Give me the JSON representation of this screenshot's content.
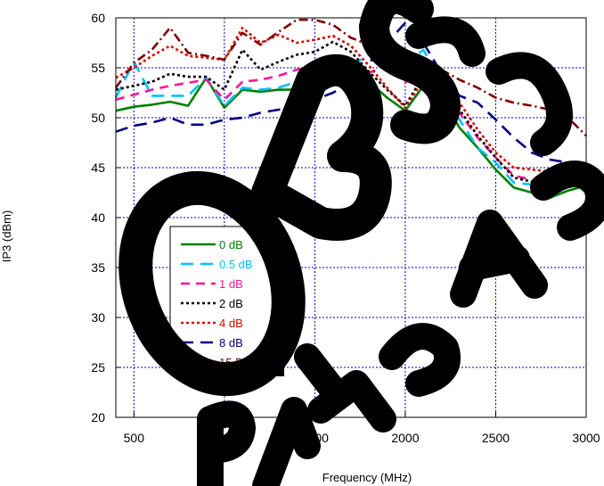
{
  "chart_data": {
    "type": "line",
    "xlabel": "Frequency (MHz)",
    "ylabel": "IP3 (dBm)",
    "xlim": [
      400,
      3000
    ],
    "ylim": [
      20,
      60
    ],
    "x_ticks": [
      500,
      1000,
      1500,
      2000,
      2500,
      3000
    ],
    "y_ticks": [
      20,
      25,
      30,
      35,
      40,
      45,
      50,
      55,
      60
    ],
    "grid": true,
    "legend_position": "left-center",
    "watermark_text": "OBSOLETE REPLACED",
    "series": [
      {
        "name": "0 dB",
        "color": "#008000",
        "dash": "solid",
        "x": [
          400,
          500,
          600,
          700,
          800,
          900,
          1000,
          1100,
          1200,
          1300,
          1400,
          1500,
          1600,
          1700,
          1800,
          1900,
          2000,
          2100,
          2200,
          2300,
          2400,
          2500,
          2600,
          2700,
          2800,
          2900,
          3000
        ],
        "values": [
          50.7,
          51.1,
          51.3,
          51.6,
          51.2,
          54.0,
          51.0,
          52.8,
          52.6,
          52.8,
          52.8,
          53.5,
          55.0,
          54.7,
          53.6,
          52.0,
          50.7,
          53.2,
          52.0,
          49.0,
          47.0,
          44.8,
          43.0,
          42.5,
          42.0,
          42.7,
          43.2
        ]
      },
      {
        "name": "0.5 dB",
        "color": "#00C0FF",
        "dash": "longdash",
        "x": [
          400,
          500,
          600,
          700,
          800,
          900,
          1000,
          1100,
          1200,
          1300,
          1400,
          1500,
          1600,
          1700,
          1800,
          1900,
          2000,
          2100,
          2200,
          2300,
          2400,
          2500,
          2600,
          2700,
          2800,
          2900,
          3000
        ],
        "values": [
          52.0,
          55.6,
          52.2,
          52.2,
          52.2,
          54.0,
          51.2,
          53.0,
          52.8,
          53.0,
          53.6,
          54.2,
          55.2,
          55.0,
          56.5,
          58.0,
          55.2,
          56.8,
          53.5,
          49.8,
          47.0,
          45.5,
          43.5,
          43.3,
          43.2,
          43.5,
          44.0
        ]
      },
      {
        "name": "1 dB",
        "color": "#FF1493",
        "dash": "dash",
        "x": [
          400,
          500,
          600,
          700,
          800,
          900,
          1000,
          1100,
          1200,
          1300,
          1400,
          1500,
          1600,
          1700,
          1800,
          1900,
          2000,
          2100,
          2200,
          2300,
          2400,
          2500,
          2600,
          2700,
          2800,
          2900,
          3000
        ],
        "values": [
          51.8,
          52.3,
          52.8,
          53.2,
          53.5,
          53.8,
          51.8,
          53.6,
          53.8,
          54.2,
          54.8,
          55.2,
          55.4,
          55.0,
          54.5,
          55.2,
          53.5,
          55.8,
          52.5,
          50.5,
          48.0,
          46.0,
          44.2,
          43.8,
          43.5,
          43.8,
          44.0
        ]
      },
      {
        "name": "2 dB",
        "color": "#000000",
        "dash": "dot",
        "x": [
          400,
          500,
          600,
          700,
          800,
          900,
          1000,
          1100,
          1200,
          1300,
          1400,
          1500,
          1600,
          1700,
          1800,
          1900,
          2000,
          2100,
          2200,
          2300,
          2400,
          2500,
          2600,
          2700,
          2800,
          2900,
          3000
        ],
        "values": [
          52.8,
          53.2,
          53.6,
          54.4,
          54.1,
          54.1,
          52.8,
          56.8,
          54.8,
          55.6,
          56.3,
          56.6,
          57.6,
          56.6,
          54.6,
          52.8,
          51.2,
          54.2,
          52.3,
          50.8,
          48.2,
          46.0,
          44.0,
          43.6,
          43.3,
          43.4,
          44.0
        ]
      },
      {
        "name": "4 dB",
        "color": "#DD0000",
        "dash": "dot",
        "x": [
          400,
          500,
          600,
          700,
          800,
          900,
          1000,
          1100,
          1200,
          1300,
          1400,
          1500,
          1600,
          1700,
          1800,
          1900,
          2000,
          2100,
          2200,
          2300,
          2400,
          2500,
          2600,
          2700,
          2800,
          2900,
          3000
        ],
        "values": [
          54.0,
          55.0,
          56.2,
          57.2,
          56.2,
          56.0,
          55.8,
          59.0,
          57.5,
          58.3,
          57.5,
          57.8,
          58.2,
          57.2,
          55.2,
          53.0,
          51.0,
          53.8,
          52.5,
          51.5,
          48.8,
          46.5,
          45.0,
          44.8,
          44.6,
          44.7,
          44.8
        ]
      },
      {
        "name": "8 dB",
        "color": "#000080",
        "dash": "longdash",
        "x": [
          400,
          500,
          600,
          700,
          800,
          900,
          1000,
          1100,
          1200,
          1300,
          1400,
          1500,
          1600,
          1700,
          1800,
          1900,
          2000,
          2100,
          2200,
          2300,
          2400,
          2500,
          2600,
          2700,
          2800,
          2900,
          3000
        ],
        "values": [
          48.6,
          49.2,
          49.5,
          50.0,
          49.3,
          49.3,
          49.8,
          50.0,
          50.5,
          50.8,
          51.3,
          51.8,
          52.5,
          53.5,
          55.5,
          57.5,
          59.5,
          57.5,
          54.5,
          52.2,
          51.5,
          49.8,
          48.0,
          46.5,
          45.8,
          45.5,
          45.0
        ]
      },
      {
        "name": "15.5 dB",
        "color": "#800000",
        "dash": "dashdot",
        "x": [
          400,
          500,
          600,
          700,
          800,
          900,
          1000,
          1100,
          1200,
          1300,
          1400,
          1500,
          1600,
          1700,
          1800,
          1900,
          2000,
          2100,
          2200,
          2300,
          2400,
          2500,
          2600,
          2700,
          2800,
          2900,
          3000
        ],
        "values": [
          53.0,
          55.5,
          56.8,
          59.0,
          56.5,
          56.2,
          55.8,
          58.5,
          57.3,
          58.6,
          59.8,
          59.8,
          59.3,
          58.0,
          57.3,
          56.0,
          56.8,
          55.3,
          54.8,
          53.8,
          53.0,
          52.0,
          51.5,
          51.2,
          50.8,
          50.0,
          48.2
        ]
      }
    ]
  }
}
